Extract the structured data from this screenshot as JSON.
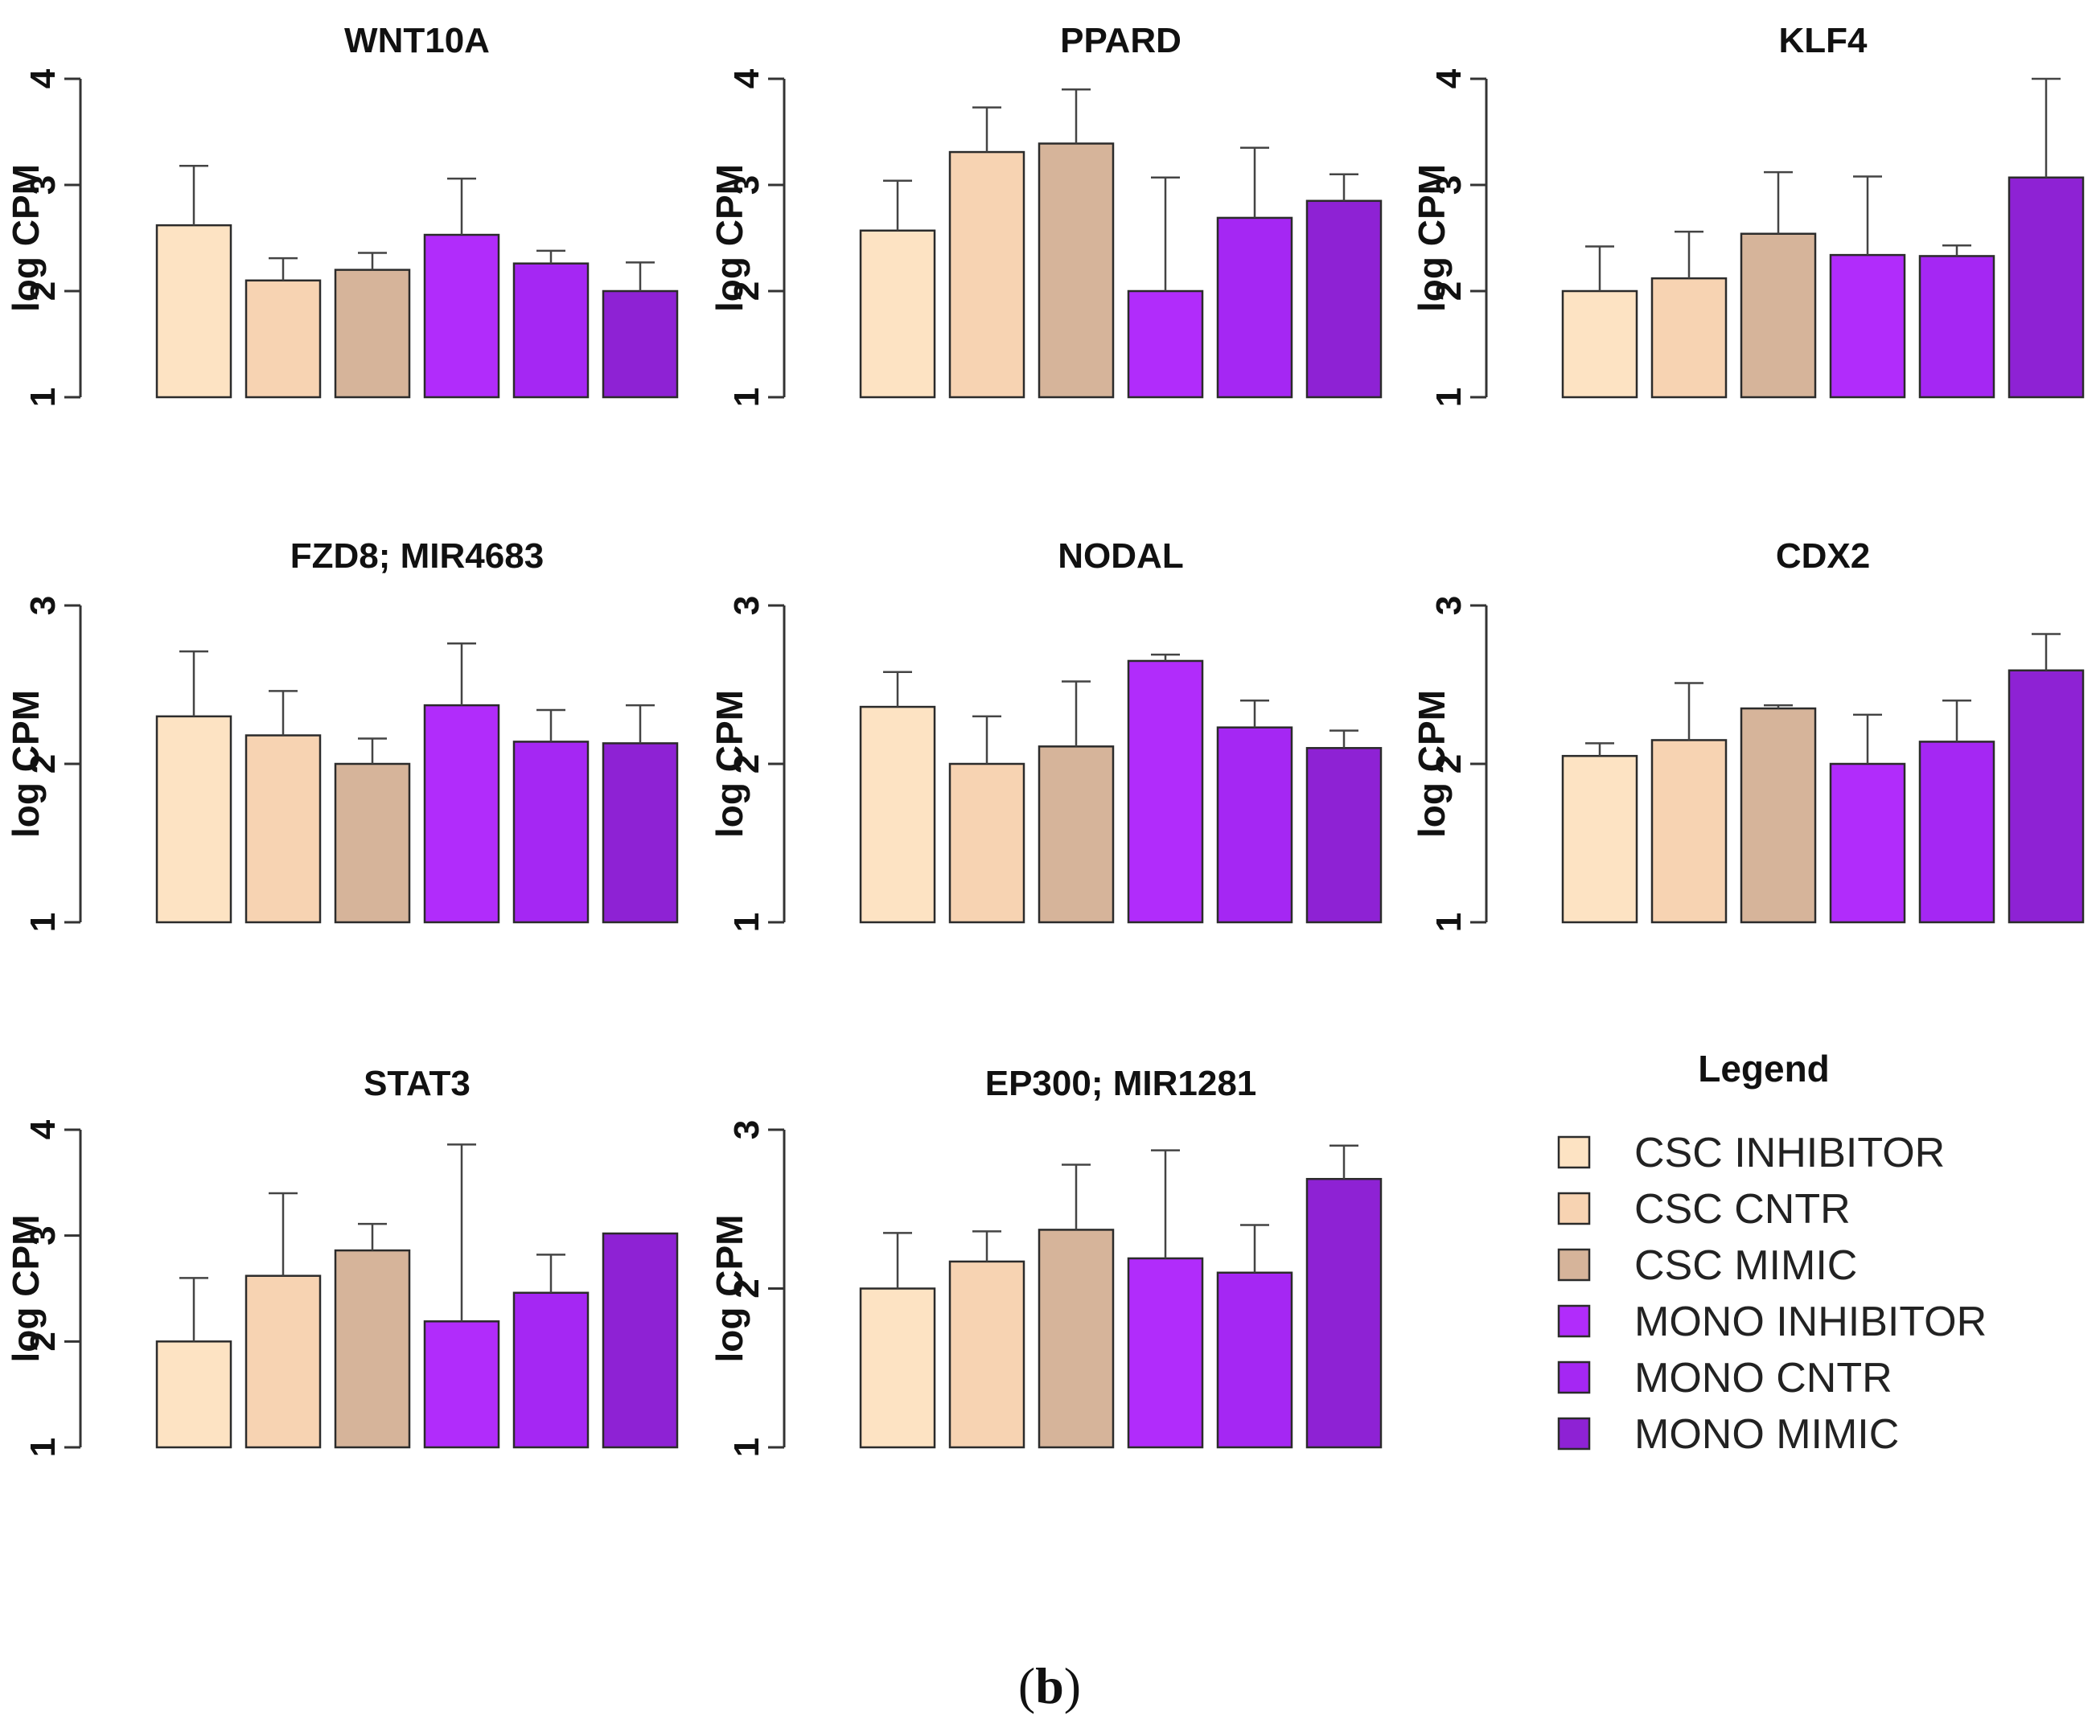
{
  "chart_data": [
    {
      "type": "bar",
      "title": "WNT10A",
      "ylabel": "log CPM",
      "ylim": [
        1,
        4
      ],
      "yticks": [
        "1",
        "2",
        "3",
        "4"
      ],
      "categories": [
        "CSC INHIBITOR",
        "CSC CNTR",
        "CSC MIMIC",
        "MONO INHIBITOR",
        "MONO CNTR",
        "MONO MIMIC"
      ],
      "values": [
        2.62,
        2.1,
        2.2,
        2.53,
        2.26,
        2.0
      ],
      "error_upper": [
        3.18,
        2.31,
        2.36,
        3.06,
        2.38,
        2.27
      ]
    },
    {
      "type": "bar",
      "title": "PPARD",
      "ylabel": "log CPM",
      "ylim": [
        1,
        4
      ],
      "yticks": [
        "1",
        "2",
        "3",
        "4"
      ],
      "categories": [
        "CSC INHIBITOR",
        "CSC CNTR",
        "CSC MIMIC",
        "MONO INHIBITOR",
        "MONO CNTR",
        "MONO MIMIC"
      ],
      "values": [
        2.57,
        3.31,
        3.39,
        2.0,
        2.69,
        2.85
      ],
      "error_upper": [
        3.04,
        3.73,
        3.9,
        3.07,
        3.35,
        3.1
      ]
    },
    {
      "type": "bar",
      "title": "KLF4",
      "ylabel": "log CPM",
      "ylim": [
        1,
        4
      ],
      "yticks": [
        "1",
        "2",
        "3",
        "4"
      ],
      "categories": [
        "CSC INHIBITOR",
        "CSC CNTR",
        "CSC MIMIC",
        "MONO INHIBITOR",
        "MONO CNTR",
        "MONO MIMIC"
      ],
      "values": [
        2.0,
        2.12,
        2.54,
        2.34,
        2.33,
        3.07
      ],
      "error_upper": [
        2.42,
        2.56,
        3.12,
        3.08,
        2.43,
        4.0
      ]
    },
    {
      "type": "bar",
      "title": "FZD8; MIR4683",
      "ylabel": "log CPM",
      "ylim": [
        1,
        3
      ],
      "yticks": [
        "1",
        "2",
        "3"
      ],
      "categories": [
        "CSC INHIBITOR",
        "CSC CNTR",
        "CSC MIMIC",
        "MONO INHIBITOR",
        "MONO CNTR",
        "MONO MIMIC"
      ],
      "values": [
        2.3,
        2.18,
        2.0,
        2.37,
        2.14,
        2.13
      ],
      "error_upper": [
        2.71,
        2.46,
        2.16,
        2.76,
        2.34,
        2.37
      ]
    },
    {
      "type": "bar",
      "title": "NODAL",
      "ylabel": "log CPM",
      "ylim": [
        1,
        3
      ],
      "yticks": [
        "1",
        "2",
        "3"
      ],
      "categories": [
        "CSC INHIBITOR",
        "CSC CNTR",
        "CSC MIMIC",
        "MONO INHIBITOR",
        "MONO CNTR",
        "MONO MIMIC"
      ],
      "values": [
        2.36,
        2.0,
        2.11,
        2.65,
        2.23,
        2.1
      ],
      "error_upper": [
        2.58,
        2.3,
        2.52,
        2.69,
        2.4,
        2.21
      ]
    },
    {
      "type": "bar",
      "title": "CDX2",
      "ylabel": "log CPM",
      "ylim": [
        1,
        3
      ],
      "yticks": [
        "1",
        "2",
        "3"
      ],
      "categories": [
        "CSC INHIBITOR",
        "CSC CNTR",
        "CSC MIMIC",
        "MONO INHIBITOR",
        "MONO CNTR",
        "MONO MIMIC"
      ],
      "values": [
        2.05,
        2.15,
        2.35,
        2.0,
        2.14,
        2.59
      ],
      "error_upper": [
        2.13,
        2.51,
        2.37,
        2.31,
        2.4,
        2.82
      ]
    },
    {
      "type": "bar",
      "title": "STAT3",
      "ylabel": "log CPM",
      "ylim": [
        1,
        4
      ],
      "yticks": [
        "1",
        "2",
        "3",
        "4"
      ],
      "categories": [
        "CSC INHIBITOR",
        "CSC CNTR",
        "CSC MIMIC",
        "MONO INHIBITOR",
        "MONO CNTR",
        "MONO MIMIC"
      ],
      "values": [
        2.0,
        2.62,
        2.86,
        2.19,
        2.46,
        3.02
      ],
      "error_upper": [
        2.6,
        3.4,
        3.11,
        3.86,
        2.82,
        3.02
      ]
    },
    {
      "type": "bar",
      "title": "EP300; MIR1281",
      "ylabel": "log CPM",
      "ylim": [
        1,
        3
      ],
      "yticks": [
        "1",
        "2",
        "3"
      ],
      "categories": [
        "CSC INHIBITOR",
        "CSC CNTR",
        "CSC MIMIC",
        "MONO INHIBITOR",
        "MONO CNTR",
        "MONO MIMIC"
      ],
      "values": [
        2.0,
        2.17,
        2.37,
        2.19,
        2.1,
        2.69
      ],
      "error_upper": [
        2.35,
        2.36,
        2.78,
        2.87,
        2.4,
        2.9
      ]
    }
  ],
  "legend": {
    "title": "Legend",
    "items": [
      {
        "label": "CSC INHIBITOR",
        "color": "#fde3c3"
      },
      {
        "label": "CSC CNTR",
        "color": "#f7d3b2"
      },
      {
        "label": "CSC MIMIC",
        "color": "#d6b49a"
      },
      {
        "label": "MONO INHIBITOR",
        "color": "#b12cfb"
      },
      {
        "label": "MONO CNTR",
        "color": "#a527f3"
      },
      {
        "label": "MONO MIMIC",
        "color": "#8e22d4"
      }
    ]
  },
  "panel_label": {
    "open": "(",
    "letter": "b",
    "close": ")"
  }
}
